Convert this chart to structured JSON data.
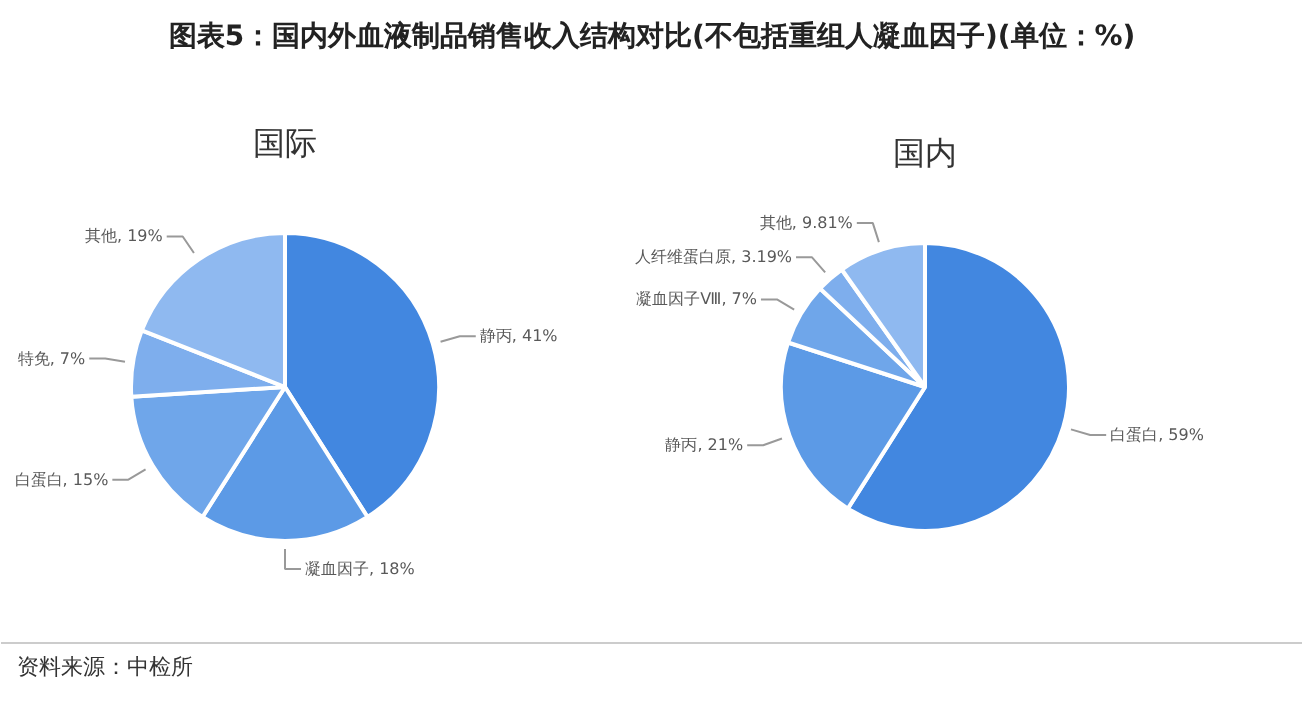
{
  "chart_data": [
    {
      "type": "pie",
      "title": "国际",
      "categories": [
        "静丙",
        "凝血因子",
        "白蛋白",
        "特免",
        "其他"
      ],
      "values": [
        41,
        18,
        15,
        7,
        19
      ],
      "value_labels": [
        "41%",
        "18%",
        "15%",
        "7%",
        "19%"
      ],
      "colors": [
        "#4287e0",
        "#5c9ae6",
        "#6fa6ea",
        "#7eaeed",
        "#8fb9f0"
      ],
      "annotations": [
        "图表5：国内外血液制品销售收入结构对比(不包括重组人凝血因子)(单位：%)",
        "资料来源：中检所"
      ]
    },
    {
      "type": "pie",
      "title": "国内",
      "categories": [
        "白蛋白",
        "静丙",
        "凝血因子Ⅷ",
        "人纤维蛋白原",
        "其他"
      ],
      "values": [
        59,
        21,
        7,
        3.19,
        9.81
      ],
      "value_labels": [
        "59%",
        "21%",
        "7%",
        "3.19%",
        "9.81%"
      ],
      "colors": [
        "#4287e0",
        "#5c9ae6",
        "#6fa6ea",
        "#7eaeed",
        "#8fb9f0"
      ]
    }
  ]
}
